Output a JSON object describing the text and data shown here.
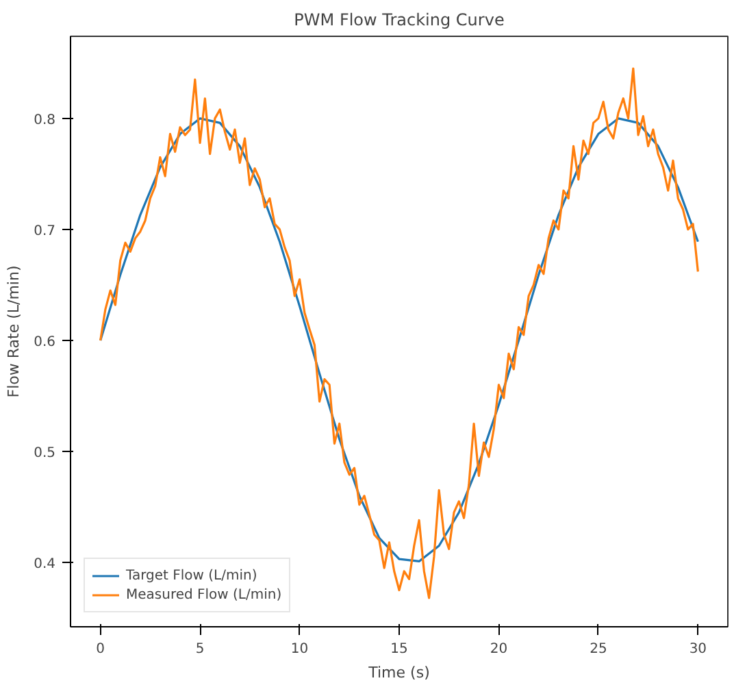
{
  "chart_data": {
    "type": "line",
    "title": "PWM Flow Tracking Curve",
    "xlabel": "Time (s)",
    "ylabel": "Flow Rate (L/min)",
    "xlim": [
      -1.5,
      31.5
    ],
    "ylim": [
      0.342,
      0.874
    ],
    "xticks": [
      0,
      5,
      10,
      15,
      20,
      25,
      30
    ],
    "yticks": [
      0.4,
      0.5,
      0.6,
      0.7,
      0.8
    ],
    "grid": false,
    "legend": "bottom left",
    "series": [
      {
        "name": "Target Flow (L/min)",
        "color": "#1f77b4",
        "x": [
          0,
          1,
          2,
          3,
          4,
          5,
          6,
          7,
          8,
          9,
          10,
          11,
          12,
          13,
          14,
          15,
          16,
          17,
          18,
          19,
          20,
          21,
          22,
          23,
          24,
          25,
          26,
          27,
          28,
          29,
          30
        ],
        "values": [
          0.6,
          0.659,
          0.713,
          0.756,
          0.786,
          0.8,
          0.796,
          0.775,
          0.738,
          0.689,
          0.631,
          0.57,
          0.511,
          0.46,
          0.422,
          0.403,
          0.401,
          0.415,
          0.445,
          0.489,
          0.542,
          0.6,
          0.659,
          0.713,
          0.756,
          0.786,
          0.8,
          0.796,
          0.775,
          0.738,
          0.689
        ]
      },
      {
        "name": "Measured Flow (L/min)",
        "color": "#ff7f0e",
        "x": [
          0,
          0.25,
          0.5,
          0.75,
          1,
          1.25,
          1.5,
          1.75,
          2,
          2.25,
          2.5,
          2.75,
          3,
          3.25,
          3.5,
          3.75,
          4,
          4.25,
          4.5,
          4.75,
          5,
          5.25,
          5.5,
          5.75,
          6,
          6.25,
          6.5,
          6.75,
          7,
          7.25,
          7.5,
          7.75,
          8,
          8.25,
          8.5,
          8.75,
          9,
          9.25,
          9.5,
          9.75,
          10,
          10.25,
          10.5,
          10.75,
          11,
          11.25,
          11.5,
          11.75,
          12,
          12.25,
          12.5,
          12.75,
          13,
          13.25,
          13.5,
          13.75,
          14,
          14.25,
          14.5,
          14.75,
          15,
          15.25,
          15.5,
          15.75,
          16,
          16.25,
          16.5,
          16.75,
          17,
          17.25,
          17.5,
          17.75,
          18,
          18.25,
          18.5,
          18.75,
          19,
          19.25,
          19.5,
          19.75,
          20,
          20.25,
          20.5,
          20.75,
          21,
          21.25,
          21.5,
          21.75,
          22,
          22.25,
          22.5,
          22.75,
          23,
          23.25,
          23.5,
          23.75,
          24,
          24.25,
          24.5,
          24.75,
          25,
          25.25,
          25.5,
          25.75,
          26,
          26.25,
          26.5,
          26.75,
          27,
          27.25,
          27.5,
          27.75,
          28,
          28.25,
          28.5,
          28.75,
          29,
          29.25,
          29.5,
          29.75,
          30
        ],
        "values": [
          0.6,
          0.628,
          0.645,
          0.632,
          0.672,
          0.688,
          0.68,
          0.692,
          0.698,
          0.708,
          0.728,
          0.739,
          0.765,
          0.748,
          0.786,
          0.77,
          0.792,
          0.785,
          0.79,
          0.835,
          0.778,
          0.818,
          0.768,
          0.8,
          0.808,
          0.788,
          0.772,
          0.79,
          0.76,
          0.782,
          0.74,
          0.755,
          0.745,
          0.72,
          0.728,
          0.705,
          0.7,
          0.684,
          0.672,
          0.64,
          0.655,
          0.625,
          0.61,
          0.596,
          0.545,
          0.565,
          0.56,
          0.507,
          0.525,
          0.49,
          0.479,
          0.485,
          0.452,
          0.46,
          0.443,
          0.425,
          0.42,
          0.395,
          0.418,
          0.392,
          0.375,
          0.392,
          0.385,
          0.415,
          0.438,
          0.392,
          0.368,
          0.405,
          0.465,
          0.425,
          0.412,
          0.445,
          0.455,
          0.44,
          0.47,
          0.525,
          0.478,
          0.508,
          0.495,
          0.52,
          0.56,
          0.548,
          0.588,
          0.574,
          0.612,
          0.605,
          0.64,
          0.65,
          0.668,
          0.66,
          0.692,
          0.708,
          0.7,
          0.735,
          0.728,
          0.775,
          0.745,
          0.78,
          0.768,
          0.796,
          0.8,
          0.815,
          0.79,
          0.782,
          0.805,
          0.818,
          0.8,
          0.845,
          0.785,
          0.802,
          0.775,
          0.79,
          0.768,
          0.756,
          0.735,
          0.762,
          0.728,
          0.718,
          0.7,
          0.705,
          0.662
        ]
      }
    ]
  }
}
